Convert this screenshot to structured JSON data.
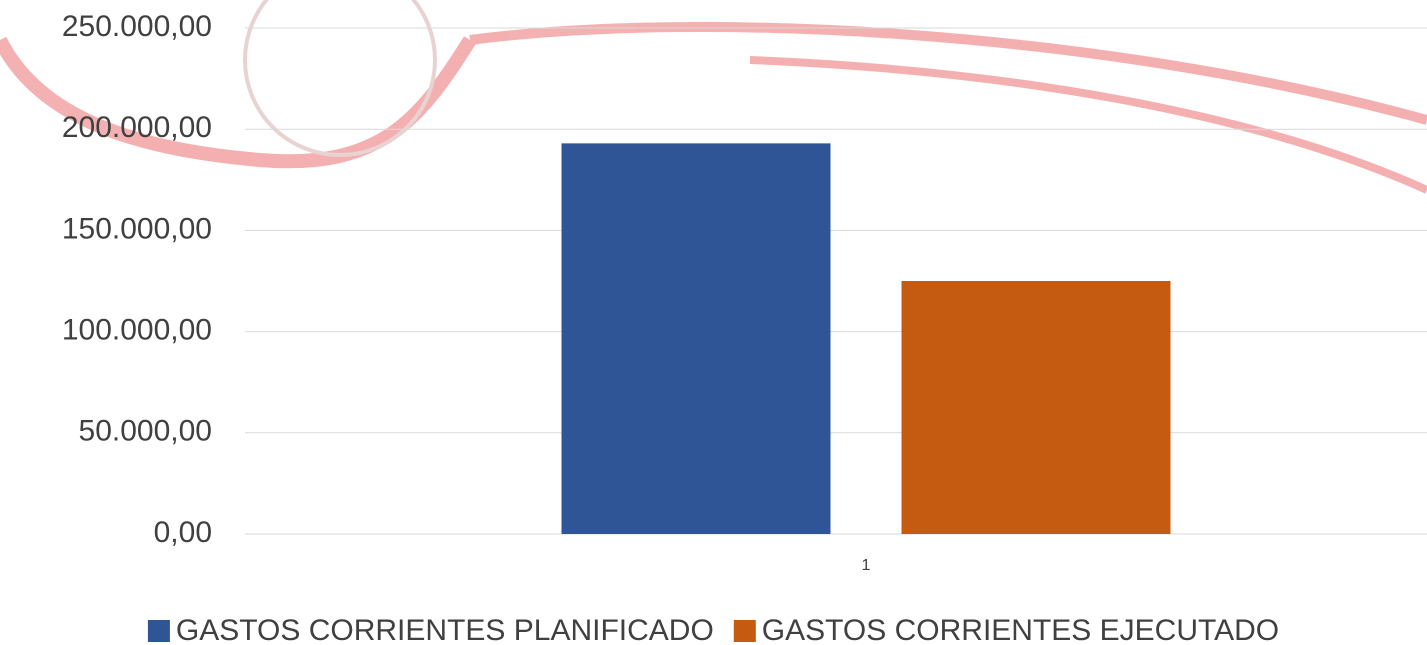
{
  "chart_data": {
    "type": "bar",
    "categories": [
      "1"
    ],
    "series": [
      {
        "name": "GASTOS CORRIENTES PLANIFICADO",
        "color": "#2f5597",
        "values": [
          193000
        ]
      },
      {
        "name": "GASTOS CORRIENTES EJECUTADO",
        "color": "#c55a11",
        "values": [
          125000
        ]
      }
    ],
    "ylim": [
      0,
      250000
    ],
    "yticks": [
      {
        "value": 0,
        "label": "0,00"
      },
      {
        "value": 50000,
        "label": "50.000,00"
      },
      {
        "value": 100000,
        "label": "100.000,00"
      },
      {
        "value": 150000,
        "label": "150.000,00"
      },
      {
        "value": 200000,
        "label": "200.000,00"
      },
      {
        "value": 250000,
        "label": "250.000,00"
      }
    ],
    "grid": true,
    "legend": "bottom"
  }
}
